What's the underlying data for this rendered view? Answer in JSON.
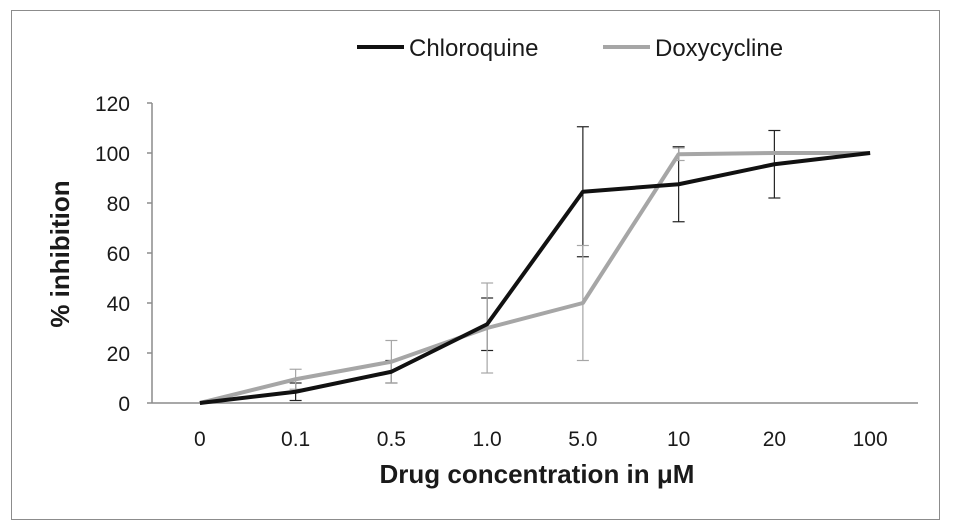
{
  "chart_data": {
    "type": "line",
    "title": "",
    "xlabel": "Drug concentration in μM",
    "ylabel": "% inhibition",
    "categories": [
      "0",
      "0.1",
      "0.5",
      "1.0",
      "5.0",
      "10",
      "20",
      "100"
    ],
    "ylim": [
      0,
      120
    ],
    "yticks": [
      0,
      20,
      40,
      60,
      80,
      100,
      120
    ],
    "grid": false,
    "legend_position": "top",
    "series": [
      {
        "name": "Chloroquine",
        "color": "#111111",
        "values": [
          0,
          4.5,
          12.5,
          31.5,
          84.5,
          87.5,
          95.5,
          100
        ],
        "error": [
          0,
          3.5,
          4.5,
          10.5,
          26,
          15,
          13.5,
          0
        ]
      },
      {
        "name": "Doxycycline",
        "color": "#a6a6a6",
        "values": [
          0,
          9.5,
          16.5,
          30,
          40,
          99.5,
          100,
          100
        ],
        "error": [
          0,
          4,
          8.5,
          18,
          23,
          2.5,
          0,
          0
        ]
      }
    ]
  }
}
